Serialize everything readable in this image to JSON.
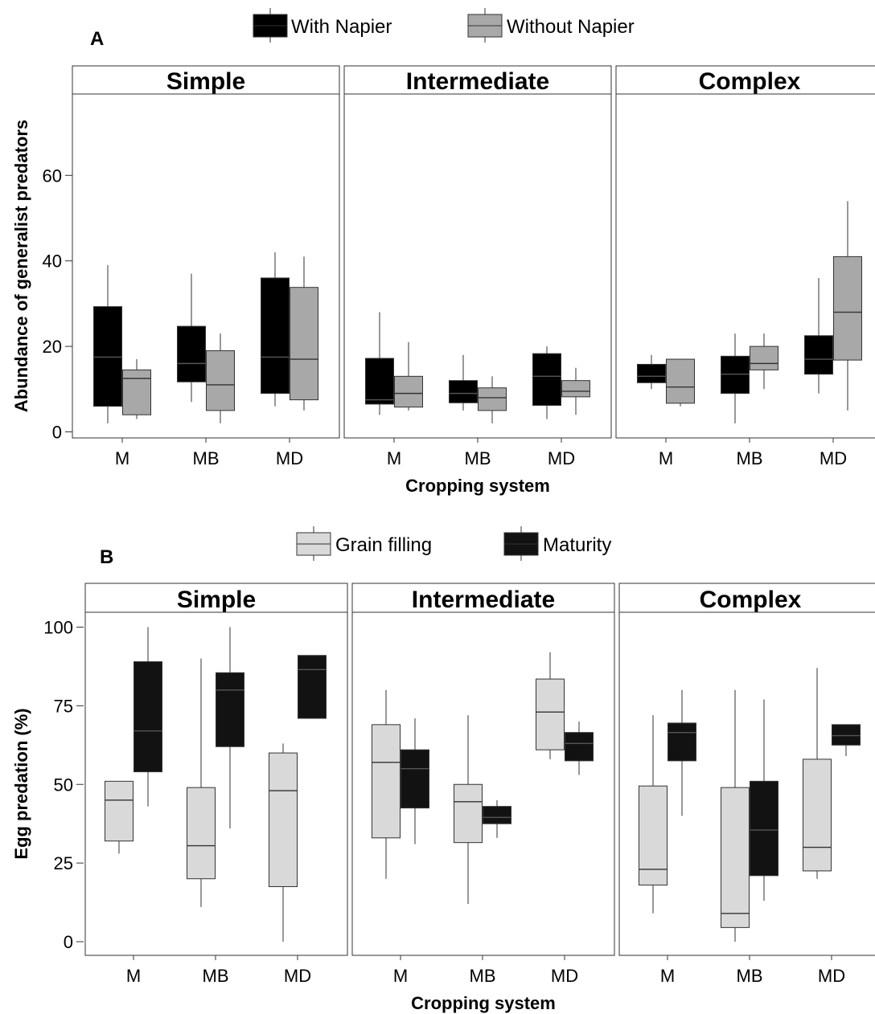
{
  "chart_data": [
    {
      "panel_label": "A",
      "type": "boxplot",
      "legend": [
        {
          "name": "With Napier",
          "color": "#000000"
        },
        {
          "name": "Without Napier",
          "color": "#a8a8a8"
        }
      ],
      "legend_position": "top",
      "facets": [
        "Simple",
        "Intermediate",
        "Complex"
      ],
      "categories": [
        "M",
        "MB",
        "MD"
      ],
      "xlabel": "Cropping system",
      "ylabel": "Abundance of generalist predators",
      "ylim": [
        -1,
        78
      ],
      "yticks": [
        0,
        20,
        40,
        60
      ],
      "ytick_labels": [
        "0",
        "20",
        "40",
        "60"
      ],
      "grid": false,
      "boxes": {
        "Simple": {
          "With Napier": [
            {
              "min": 2,
              "q1": 6,
              "median": 17.5,
              "q3": 29.3,
              "max": 39
            },
            {
              "min": 7,
              "q1": 11.7,
              "median": 16,
              "q3": 24.7,
              "max": 37
            },
            {
              "min": 6,
              "q1": 9,
              "median": 17.5,
              "q3": 36,
              "max": 42
            }
          ],
          "Without Napier": [
            {
              "min": 3,
              "q1": 4,
              "median": 12.5,
              "q3": 14.5,
              "max": 17
            },
            {
              "min": 2,
              "q1": 5,
              "median": 11,
              "q3": 19,
              "max": 23
            },
            {
              "min": 5,
              "q1": 7.5,
              "median": 17,
              "q3": 33.8,
              "max": 41
            }
          ]
        },
        "Intermediate": {
          "With Napier": [
            {
              "min": 4,
              "q1": 6.5,
              "median": 7.5,
              "q3": 17.2,
              "max": 28
            },
            {
              "min": 5,
              "q1": 6.8,
              "median": 9,
              "q3": 12,
              "max": 18
            },
            {
              "min": 3,
              "q1": 6.2,
              "median": 13,
              "q3": 18.3,
              "max": 20
            }
          ],
          "Without Napier": [
            {
              "min": 5,
              "q1": 5.8,
              "median": 9,
              "q3": 13,
              "max": 21
            },
            {
              "min": 2,
              "q1": 5,
              "median": 8,
              "q3": 10.3,
              "max": 13
            },
            {
              "min": 4,
              "q1": 8.2,
              "median": 9.5,
              "q3": 12,
              "max": 15
            }
          ]
        },
        "Complex": {
          "With Napier": [
            {
              "min": 10,
              "q1": 11.5,
              "median": 13,
              "q3": 15.8,
              "max": 18
            },
            {
              "min": 2,
              "q1": 9,
              "median": 13.5,
              "q3": 17.7,
              "max": 23
            },
            {
              "min": 9,
              "q1": 13.5,
              "median": 17,
              "q3": 22.5,
              "max": 36
            }
          ],
          "Without Napier": [
            {
              "min": 6,
              "q1": 6.7,
              "median": 10.5,
              "q3": 17,
              "max": 17
            },
            {
              "min": 10,
              "q1": 14.5,
              "median": 16,
              "q3": 20,
              "max": 23
            },
            {
              "min": 5,
              "q1": 16.8,
              "median": 28,
              "q3": 41,
              "max": 54
            }
          ]
        }
      }
    },
    {
      "panel_label": "B",
      "type": "boxplot",
      "legend": [
        {
          "name": "Grain filling",
          "color": "#d9d9d9"
        },
        {
          "name": "Maturity",
          "color": "#121212"
        }
      ],
      "legend_position": "top",
      "facets": [
        "Simple",
        "Intermediate",
        "Complex"
      ],
      "categories": [
        "M",
        "MB",
        "MD"
      ],
      "xlabel": "Cropping system",
      "ylabel": "Egg predation (%)",
      "ylim": [
        -4.5,
        104.5
      ],
      "yticks": [
        0,
        25,
        50,
        75,
        100
      ],
      "ytick_labels": [
        "0",
        "25",
        "50",
        "75",
        "100"
      ],
      "grid": false,
      "boxes": {
        "Simple": {
          "Grain filling": [
            {
              "min": 28,
              "q1": 32,
              "median": 45,
              "q3": 51,
              "max": 51
            },
            {
              "min": 11,
              "q1": 20,
              "median": 30.5,
              "q3": 49,
              "max": 90
            },
            {
              "min": 0,
              "q1": 17.5,
              "median": 48,
              "q3": 60,
              "max": 63
            }
          ],
          "Maturity": [
            {
              "min": 43,
              "q1": 54,
              "median": 67,
              "q3": 89,
              "max": 100
            },
            {
              "min": 36,
              "q1": 62,
              "median": 80,
              "q3": 85.5,
              "max": 100
            },
            {
              "min": 71,
              "q1": 71,
              "median": 86.5,
              "q3": 91,
              "max": 91
            }
          ]
        },
        "Intermediate": {
          "Grain filling": [
            {
              "min": 20,
              "q1": 33,
              "median": 57,
              "q3": 69,
              "max": 80
            },
            {
              "min": 12,
              "q1": 31.5,
              "median": 44.5,
              "q3": 50,
              "max": 72
            },
            {
              "min": 58,
              "q1": 61,
              "median": 73,
              "q3": 83.5,
              "max": 92
            }
          ],
          "Maturity": [
            {
              "min": 31,
              "q1": 42.5,
              "median": 55,
              "q3": 61,
              "max": 71
            },
            {
              "min": 33,
              "q1": 37.5,
              "median": 39.5,
              "q3": 43,
              "max": 45
            },
            {
              "min": 53,
              "q1": 57.5,
              "median": 63,
              "q3": 66.5,
              "max": 70
            }
          ]
        },
        "Complex": {
          "Grain filling": [
            {
              "min": 9,
              "q1": 18,
              "median": 23,
              "q3": 49.5,
              "max": 72
            },
            {
              "min": 0,
              "q1": 4.5,
              "median": 9,
              "q3": 49,
              "max": 80
            },
            {
              "min": 20,
              "q1": 22.5,
              "median": 30,
              "q3": 58,
              "max": 87
            }
          ],
          "Maturity": [
            {
              "min": 40,
              "q1": 57.5,
              "median": 66.5,
              "q3": 69.5,
              "max": 80
            },
            {
              "min": 13,
              "q1": 21,
              "median": 35.5,
              "q3": 51,
              "max": 77
            },
            {
              "min": 59,
              "q1": 62.5,
              "median": 65.5,
              "q3": 69,
              "max": 69
            }
          ]
        }
      }
    }
  ]
}
